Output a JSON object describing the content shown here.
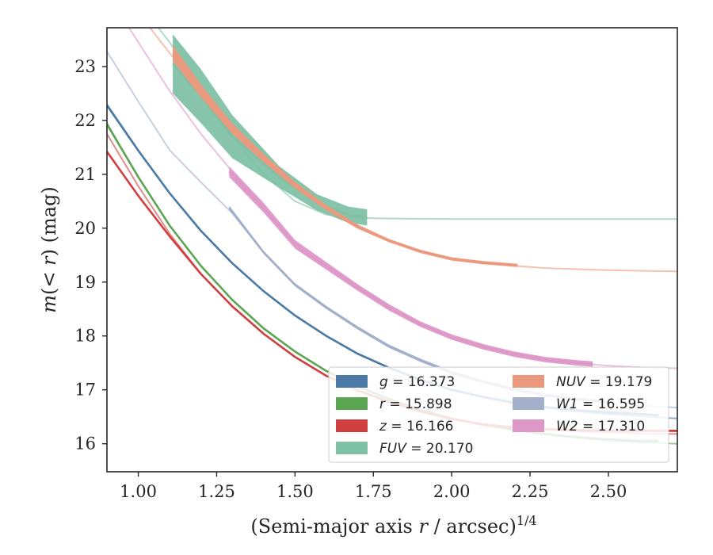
{
  "chart_data": {
    "type": "line",
    "xlabel": "(Semi-major axis r / arcsec)^{1/4}",
    "ylabel": "m(<r) (mag)",
    "xlim": [
      0.9,
      2.72
    ],
    "ylim": [
      23.72,
      15.48
    ],
    "y_inverted": true,
    "xticks": [
      "1.00",
      "1.25",
      "1.50",
      "1.75",
      "2.00",
      "2.25",
      "2.50"
    ],
    "yticks": [
      "16",
      "17",
      "18",
      "19",
      "20",
      "21",
      "22",
      "23"
    ],
    "grid": false,
    "legend": {
      "placement": "lower-right",
      "columns": 2
    },
    "series": [
      {
        "name": "g = 16.373",
        "band": "g",
        "color": "#4c7aa6",
        "band_width": 0.02,
        "fit_x": [
          0.9,
          1.0,
          1.1,
          1.2,
          1.3,
          1.4,
          1.5,
          1.6,
          1.7,
          1.8,
          1.9,
          2.0,
          2.1,
          2.2,
          2.3,
          2.4,
          2.5,
          2.6,
          2.72
        ],
        "fit_y": [
          22.3,
          21.45,
          20.65,
          19.95,
          19.35,
          18.83,
          18.38,
          18.0,
          17.67,
          17.41,
          17.19,
          17.0,
          16.86,
          16.75,
          16.67,
          16.6,
          16.55,
          16.51,
          16.47
        ],
        "obs_x": [
          0.9,
          1.0,
          1.1,
          1.2,
          1.3,
          1.4,
          1.5,
          1.6,
          1.7,
          1.8,
          1.9,
          2.0,
          2.1,
          2.2,
          2.3,
          2.4,
          2.5,
          2.6,
          2.66
        ],
        "obs_y": [
          22.28,
          21.44,
          20.65,
          19.95,
          19.35,
          18.83,
          18.38,
          18.0,
          17.67,
          17.41,
          17.19,
          17.0,
          16.87,
          16.76,
          16.68,
          16.62,
          16.58,
          16.55,
          16.53
        ]
      },
      {
        "name": "r = 15.898",
        "band": "r",
        "color": "#5ba653",
        "band_width": 0.02,
        "fit_x": [
          0.9,
          1.0,
          1.1,
          1.2,
          1.3,
          1.4,
          1.5,
          1.6,
          1.7,
          1.8,
          1.9,
          2.0,
          2.1,
          2.2,
          2.3,
          2.4,
          2.5,
          2.6,
          2.72
        ],
        "fit_y": [
          21.95,
          20.95,
          20.05,
          19.3,
          18.67,
          18.14,
          17.71,
          17.35,
          17.06,
          16.83,
          16.63,
          16.47,
          16.35,
          16.25,
          16.17,
          16.11,
          16.06,
          16.03,
          16.0
        ],
        "obs_x": [
          0.9,
          1.0,
          1.1,
          1.2,
          1.3,
          1.4,
          1.5,
          1.6,
          1.7,
          1.8,
          1.9,
          2.0,
          2.1,
          2.2,
          2.3,
          2.4,
          2.5,
          2.6,
          2.66
        ],
        "obs_y": [
          21.93,
          20.95,
          20.05,
          19.3,
          18.67,
          18.14,
          17.71,
          17.35,
          17.06,
          16.83,
          16.63,
          16.47,
          16.35,
          16.26,
          16.18,
          16.12,
          16.08,
          16.05,
          16.05
        ]
      },
      {
        "name": "z = 16.166",
        "band": "z",
        "color": "#d03f3f",
        "band_width": 0.02,
        "fit_x": [
          0.9,
          1.0,
          1.1,
          1.2,
          1.3,
          1.4,
          1.5,
          1.6,
          1.7,
          1.8,
          1.9,
          2.0,
          2.1,
          2.2,
          2.3,
          2.4,
          2.5,
          2.6,
          2.72
        ],
        "fit_y": [
          21.75,
          20.78,
          19.9,
          19.15,
          18.55,
          18.04,
          17.61,
          17.26,
          16.99,
          16.78,
          16.6,
          16.46,
          16.36,
          16.3,
          16.26,
          16.23,
          16.21,
          16.19,
          16.18
        ],
        "obs_x": [
          0.9,
          1.0,
          1.1,
          1.2,
          1.3,
          1.4,
          1.5,
          1.6,
          1.7,
          1.8,
          1.9,
          2.0,
          2.1,
          2.2,
          2.3,
          2.4,
          2.5,
          2.6,
          2.72
        ],
        "obs_y": [
          21.42,
          20.6,
          19.85,
          19.15,
          18.55,
          18.04,
          17.61,
          17.26,
          16.99,
          16.78,
          16.6,
          16.46,
          16.36,
          16.3,
          16.27,
          16.25,
          16.24,
          16.24,
          16.24
        ]
      },
      {
        "name": "FUV = 20.170",
        "band": "FUV",
        "color": "#7fc1a7",
        "band_width": 0.2,
        "fit_x": [
          0.9,
          1.0,
          1.1,
          1.2,
          1.3,
          1.4,
          1.5,
          1.6,
          1.7,
          1.8,
          2.0,
          2.2,
          2.4,
          2.6,
          2.72
        ],
        "fit_y": [
          25.0,
          24.2,
          23.45,
          22.6,
          21.7,
          21.0,
          20.5,
          20.25,
          20.19,
          20.18,
          20.17,
          20.17,
          20.17,
          20.17,
          20.17
        ],
        "obs_x": [
          1.11,
          1.2,
          1.3,
          1.45,
          1.57,
          1.67,
          1.73
        ],
        "obs_y": [
          23.05,
          22.45,
          21.7,
          20.95,
          20.48,
          20.25,
          20.2
        ],
        "obs_err": [
          0.55,
          0.5,
          0.4,
          0.2,
          0.15,
          0.15,
          0.15
        ]
      },
      {
        "name": "NUV = 19.179",
        "band": "NUV",
        "color": "#eb997d",
        "band_width": 0.1,
        "fit_x": [
          0.9,
          1.0,
          1.1,
          1.2,
          1.3,
          1.4,
          1.5,
          1.6,
          1.7,
          1.8,
          1.9,
          2.0,
          2.1,
          2.2,
          2.3,
          2.4,
          2.5,
          2.6,
          2.72
        ],
        "fit_y": [
          24.8,
          24.0,
          23.25,
          22.55,
          21.85,
          21.3,
          20.8,
          20.38,
          20.03,
          19.77,
          19.57,
          19.43,
          19.35,
          19.3,
          19.26,
          19.24,
          19.22,
          19.21,
          19.2
        ],
        "obs_x": [
          1.11,
          1.2,
          1.3,
          1.4,
          1.5,
          1.6,
          1.7,
          1.8,
          1.9,
          2.0,
          2.1,
          2.21
        ],
        "obs_y": [
          23.25,
          22.55,
          21.85,
          21.3,
          20.8,
          20.38,
          20.03,
          19.77,
          19.57,
          19.43,
          19.36,
          19.31
        ],
        "obs_err": [
          0.15,
          0.12,
          0.1,
          0.08,
          0.06,
          0.05,
          0.04,
          0.03,
          0.03,
          0.03,
          0.03,
          0.03
        ]
      },
      {
        "name": "W1 = 16.595",
        "band": "W1",
        "color": "#a2b0cb",
        "band_width": 0.03,
        "fit_x": [
          0.9,
          1.0,
          1.1,
          1.2,
          1.3,
          1.4,
          1.5,
          1.6,
          1.7,
          1.8,
          1.9,
          2.0,
          2.1,
          2.2,
          2.3,
          2.4,
          2.5,
          2.6,
          2.72
        ],
        "fit_y": [
          23.28,
          22.35,
          21.45,
          20.85,
          20.28,
          19.55,
          18.95,
          18.53,
          18.15,
          17.81,
          17.55,
          17.32,
          17.15,
          17.0,
          16.9,
          16.82,
          16.76,
          16.71,
          16.67
        ],
        "obs_x": [
          1.29,
          1.4,
          1.5,
          1.6,
          1.7,
          1.8,
          1.9,
          2.0,
          2.1,
          2.2,
          2.3,
          2.4,
          2.49
        ],
        "obs_y": [
          20.38,
          19.55,
          18.95,
          18.53,
          18.15,
          17.81,
          17.55,
          17.32,
          17.15,
          17.01,
          16.9,
          16.83,
          16.78
        ],
        "obs_err": [
          0.04,
          0.03,
          0.03,
          0.03,
          0.03,
          0.03,
          0.03,
          0.03,
          0.03,
          0.03,
          0.03,
          0.03,
          0.03
        ]
      },
      {
        "name": "W2 = 17.310",
        "band": "W2",
        "color": "#de98c8",
        "band_width": 0.08,
        "fit_x": [
          0.9,
          1.0,
          1.1,
          1.2,
          1.3,
          1.4,
          1.5,
          1.6,
          1.7,
          1.8,
          1.9,
          2.0,
          2.1,
          2.2,
          2.3,
          2.4,
          2.5,
          2.6,
          2.72
        ],
        "fit_y": [
          24.35,
          23.45,
          22.55,
          21.75,
          21.05,
          20.35,
          19.7,
          19.3,
          18.88,
          18.53,
          18.22,
          17.98,
          17.8,
          17.66,
          17.56,
          17.49,
          17.45,
          17.42,
          17.4
        ],
        "obs_x": [
          1.29,
          1.4,
          1.5,
          1.6,
          1.7,
          1.8,
          1.9,
          2.0,
          2.1,
          2.2,
          2.3,
          2.4,
          2.45
        ],
        "obs_y": [
          21.05,
          20.38,
          19.7,
          19.3,
          18.9,
          18.53,
          18.22,
          17.98,
          17.8,
          17.66,
          17.56,
          17.5,
          17.48
        ],
        "obs_err": [
          0.1,
          0.09,
          0.08,
          0.07,
          0.06,
          0.06,
          0.05,
          0.05,
          0.05,
          0.05,
          0.05,
          0.05,
          0.05
        ]
      }
    ],
    "legend_entries": [
      {
        "sym": "g",
        "value": " = 16.373",
        "color": "#4c7aa6",
        "italic_symbol": true
      },
      {
        "sym": "r",
        "value": " = 15.898",
        "color": "#5ba653",
        "italic_symbol": true
      },
      {
        "sym": "z",
        "value": " = 16.166",
        "color": "#d03f3f",
        "italic_symbol": true
      },
      {
        "sym": "FUV",
        "value": " = 20.170",
        "color": "#7fc1a7",
        "italic_symbol": true
      },
      {
        "sym": "NUV",
        "value": " = 19.179",
        "color": "#eb997d",
        "italic_symbol": true
      },
      {
        "sym": "W1",
        "value": " = 16.595",
        "color": "#a2b0cb",
        "italic_symbol": true
      },
      {
        "sym": "W2",
        "value": " = 17.310",
        "color": "#de98c8",
        "italic_symbol": true
      }
    ]
  }
}
